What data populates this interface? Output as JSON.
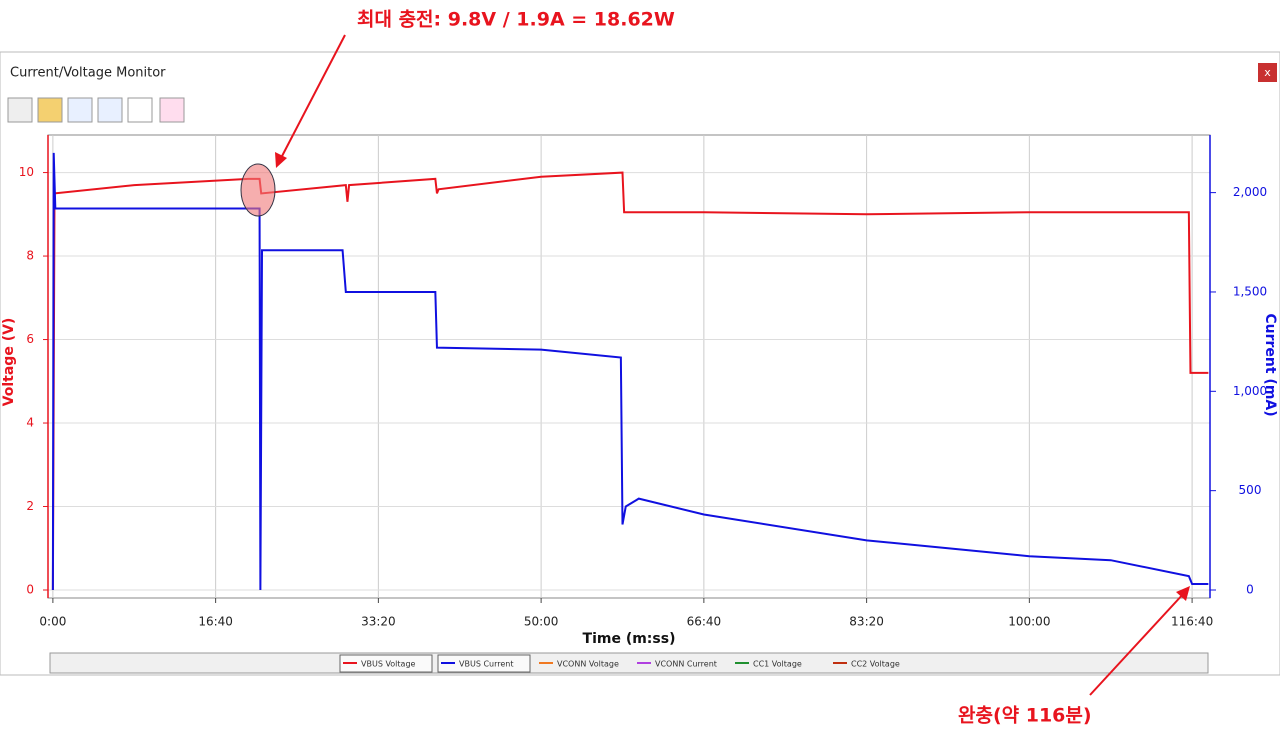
{
  "window": {
    "title": "Current/Voltage Monitor",
    "close": "x"
  },
  "annotations": {
    "max_charge": "최대 충전: 9.8V / 1.9A = 18.62W",
    "full_charge": "완충(약 116분)"
  },
  "chart_data": {
    "type": "line",
    "xlabel": "Time (m:ss)",
    "ylabel": "Voltage (V)",
    "y2label": "Current (mA)",
    "xlim": [
      -30,
      7110
    ],
    "ylim": [
      0,
      10.9
    ],
    "y2lim": [
      0,
      2290
    ],
    "grid": true,
    "xticks": [
      {
        "value": 0,
        "label": "0:00"
      },
      {
        "value": 1000,
        "label": "16:40"
      },
      {
        "value": 2000,
        "label": "33:20"
      },
      {
        "value": 3000,
        "label": "50:00"
      },
      {
        "value": 4000,
        "label": "66:40"
      },
      {
        "value": 5000,
        "label": "83:20"
      },
      {
        "value": 6000,
        "label": "100:00"
      },
      {
        "value": 7000,
        "label": "116:40"
      }
    ],
    "yticks": [
      0,
      2,
      4,
      6,
      8,
      10
    ],
    "y2ticks": [
      0,
      500,
      {
        "value": 1000,
        "label": "1,000"
      },
      {
        "value": 1500,
        "label": "1,500"
      },
      {
        "value": 2000,
        "label": "2,000"
      }
    ],
    "series": [
      {
        "name": "VBUS Voltage",
        "color": "#e8141e",
        "x": [
          0,
          10,
          500,
          1200,
          1270,
          1280,
          1800,
          1810,
          1820,
          2350,
          2360,
          2370,
          3000,
          3500,
          3510,
          4000,
          5000,
          6000,
          6980,
          6990,
          7100
        ],
        "values": [
          0,
          9.5,
          9.7,
          9.85,
          9.85,
          9.5,
          9.7,
          9.3,
          9.7,
          9.85,
          9.5,
          9.6,
          9.9,
          10.0,
          9.05,
          9.05,
          9.0,
          9.05,
          9.05,
          5.2,
          5.2
        ]
      },
      {
        "name": "VBUS Current",
        "color": "#1010e0",
        "axis": "y2",
        "x": [
          0,
          5,
          15,
          1270,
          1275,
          1285,
          1780,
          1800,
          2350,
          2360,
          3000,
          3490,
          3500,
          3520,
          3600,
          4000,
          5000,
          5500,
          6000,
          6500,
          6980,
          7000,
          7100
        ],
        "values": [
          0,
          2200,
          1920,
          1920,
          0,
          1710,
          1710,
          1500,
          1500,
          1220,
          1210,
          1170,
          330,
          420,
          460,
          380,
          250,
          210,
          170,
          150,
          70,
          30,
          30
        ]
      }
    ],
    "legend_entries": [
      {
        "name": "VCONN Voltage",
        "color": "#f07820"
      },
      {
        "name": "VCONN Current",
        "color": "#b040e0"
      },
      {
        "name": "CC1 Voltage",
        "color": "#209030"
      },
      {
        "name": "CC2 Voltage",
        "color": "#c03010"
      }
    ]
  }
}
